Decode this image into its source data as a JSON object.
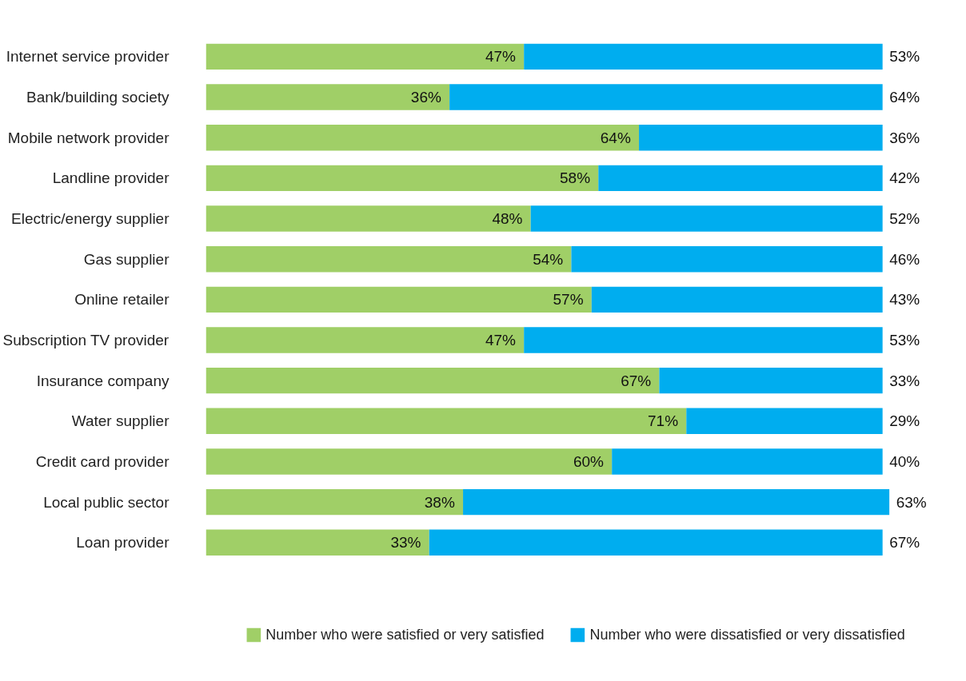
{
  "chart_data": {
    "type": "bar",
    "orientation": "horizontal",
    "stacked": true,
    "grid": false,
    "legend": "bottom",
    "tick_labels": "y",
    "categories": [
      "Internet service provider",
      "Bank/building society",
      "Mobile network provider",
      "Landline provider",
      "Electric/energy supplier",
      "Gas supplier",
      "Online retailer",
      "Subscription TV provider",
      "Insurance company",
      "Water supplier",
      "Credit card provider",
      "Local public sector",
      "Loan provider"
    ],
    "series": [
      {
        "name": "Number who were satisfied or very satisfied",
        "color": "#a0cf67",
        "values": [
          47,
          36,
          64,
          58,
          48,
          54,
          57,
          47,
          67,
          71,
          60,
          38,
          33
        ],
        "value_labels": [
          "47%",
          "36%",
          "64%",
          "58%",
          "48%",
          "54%",
          "57%",
          "47%",
          "67%",
          "71%",
          "60%",
          "38%",
          "33%"
        ]
      },
      {
        "name": "Number who were dissatisfied or very dissatisfied",
        "color": "#00adef",
        "values": [
          53,
          64,
          36,
          42,
          52,
          46,
          43,
          53,
          33,
          29,
          40,
          63,
          67
        ],
        "value_labels": [
          "53%",
          "64%",
          "36%",
          "42%",
          "52%",
          "46%",
          "43%",
          "53%",
          "33%",
          "29%",
          "40%",
          "63%",
          "67%"
        ]
      }
    ]
  }
}
